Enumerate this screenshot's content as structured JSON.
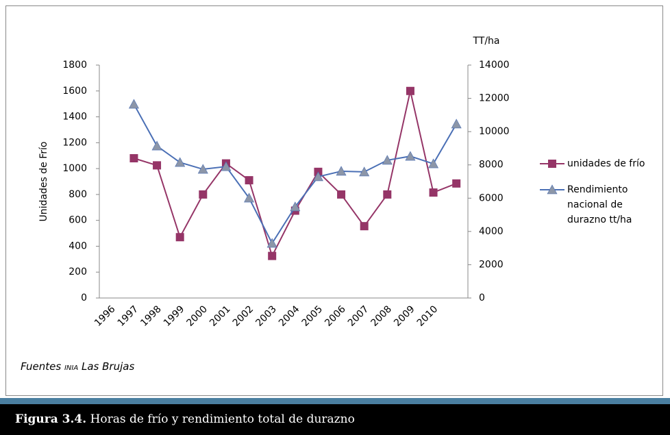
{
  "chart_data": {
    "type": "line",
    "y_label": "Unidades de Frío",
    "y2_label": "TT/ha",
    "categories": [
      "1996",
      "1997",
      "1998",
      "1999",
      "2000",
      "2001",
      "2002",
      "2003",
      "2004",
      "2005",
      "2006",
      "2007",
      "2008",
      "2009",
      "2010",
      null
    ],
    "series": [
      {
        "name": "unidades de frío",
        "color": "#953567",
        "marker": "square",
        "values": [
          null,
          1080,
          1025,
          470,
          800,
          1040,
          910,
          325,
          675,
          975,
          800,
          555,
          800,
          1600,
          815,
          885
        ]
      },
      {
        "name": "Rendimiento nacional de durazno tt/ha",
        "color": "#4a6fb5",
        "marker": "triangle",
        "marker_color": "#8c96a8",
        "axis": "y2",
        "values": [
          null,
          11650,
          9140,
          8150,
          7740,
          7900,
          6010,
          3290,
          5480,
          7290,
          7620,
          7580,
          8280,
          8520,
          8070,
          10460
        ]
      }
    ],
    "ylim": [
      0,
      1800
    ],
    "yticks": [
      0,
      200,
      400,
      600,
      800,
      1000,
      1200,
      1400,
      1600,
      1800
    ],
    "y2lim": [
      0,
      14000
    ],
    "y2ticks": [
      0,
      2000,
      4000,
      6000,
      8000,
      10000,
      12000,
      14000
    ],
    "grid": false,
    "legend": "right"
  },
  "footer": {
    "source_prefix": "Fuentes",
    "source_org": "INIA",
    "source_rest": "Las Brujas",
    "figure_label": "Figura 3.4.",
    "figure_text": "Horas de frío y rendimiento total de durazno"
  }
}
